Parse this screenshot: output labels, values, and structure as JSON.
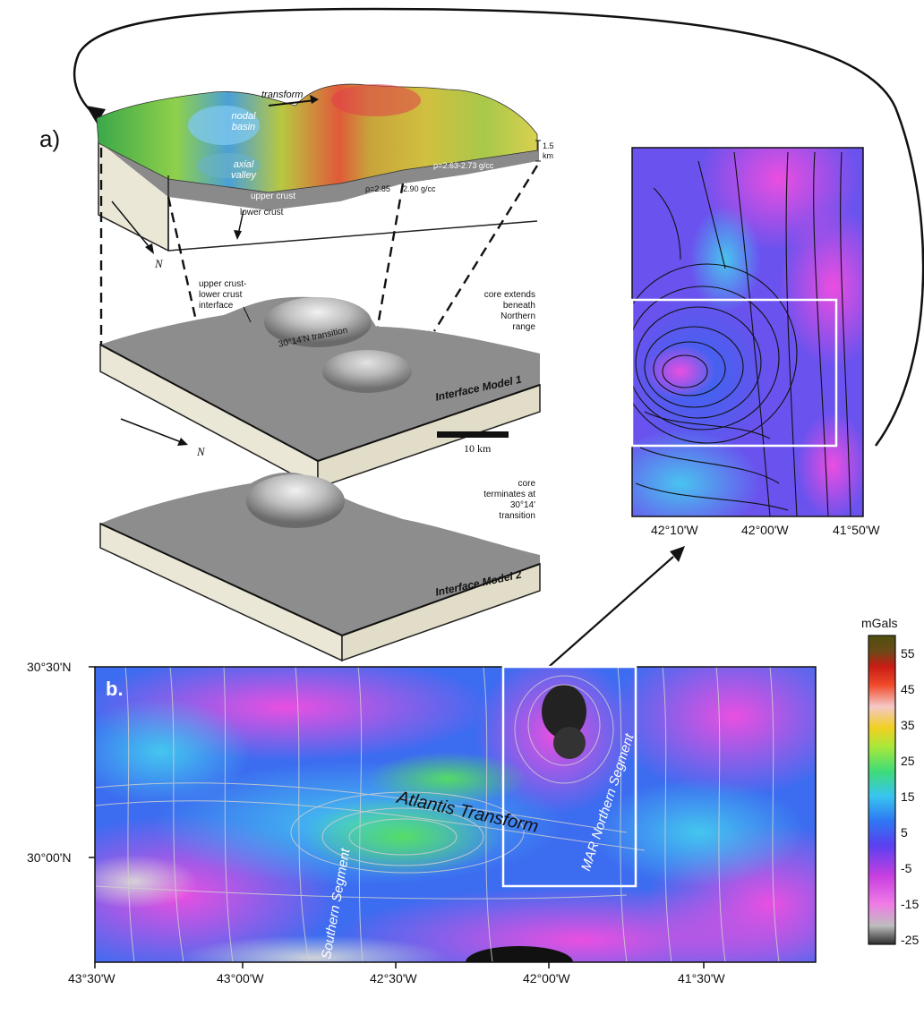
{
  "panel_a": {
    "label": "a)",
    "block": {
      "transform": "transform",
      "nodal_basin": "nodal basin",
      "axial_valley": "axial valley",
      "upper_crust": "upper crust",
      "lower_crust": "lower crust",
      "density_1": "ρ=2.85",
      "density_2": "2.90 g/cc",
      "density_3": "ρ=2.63-2.73 g/cc",
      "scale_depth": "1.5 km",
      "north": "N"
    },
    "model1": {
      "interface_label": "upper crust- lower crust interface",
      "transition": "30°14'N transition",
      "note": "core extends beneath Northern range",
      "title": "Interface Model 1",
      "north": "N",
      "scale": "10 km"
    },
    "model2": {
      "note": "core terminates at 30°14' transition",
      "title": "Interface Model 2"
    }
  },
  "inset": {
    "x_ticks": [
      "42°10'W",
      "42°00'W",
      "41°50'W"
    ]
  },
  "panel_b": {
    "label": "b.",
    "y_ticks": [
      "30°30'N",
      "30°00'N"
    ],
    "x_ticks": [
      "43°30'W",
      "43°00'W",
      "42°30'W",
      "42°00'W",
      "41°30'W"
    ],
    "atlantis": "Atlantis Transform",
    "southern": "Southern Segment",
    "northern": "MAR Northern Segment"
  },
  "colorbar": {
    "unit": "mGals",
    "ticks": [
      "55",
      "45",
      "35",
      "25",
      "15",
      "5",
      "-5",
      "-15",
      "-25"
    ]
  },
  "colors": {
    "magenta": "#e640d8",
    "violet": "#7a3cf0",
    "blue": "#2f6ff0",
    "cyan": "#3fc6ee",
    "green": "#3fdc6a"
  }
}
